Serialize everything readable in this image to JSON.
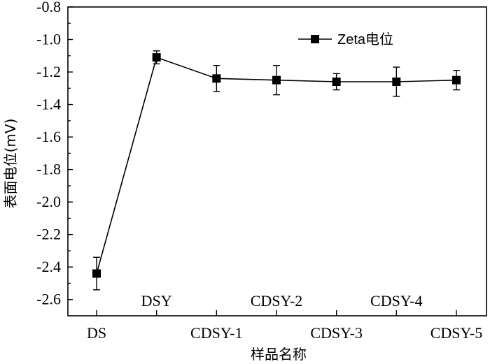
{
  "chart_data": {
    "type": "line",
    "categories": [
      "DS",
      "DSY",
      "CDSY-1",
      "CDSY-2",
      "CDSY-3",
      "CDSY-4",
      "CDSY-5"
    ],
    "series": [
      {
        "name": "Zeta电位",
        "values": [
          -2.44,
          -1.11,
          -1.24,
          -1.25,
          -1.26,
          -1.26,
          -1.25
        ],
        "error": [
          0.1,
          0.04,
          0.08,
          0.09,
          0.05,
          0.09,
          0.06
        ]
      }
    ],
    "xlabel": "样品名称",
    "ylabel": "表面电位(mV)",
    "ylim": [
      -2.7,
      -0.8
    ],
    "yticks": [
      -0.8,
      -1.0,
      -1.2,
      -1.4,
      -1.6,
      -1.8,
      -2.0,
      -2.2,
      -2.4,
      -2.6
    ],
    "ytick_labels": [
      "-0.8",
      "-1.0",
      "-1.2",
      "-1.4",
      "-1.6",
      "-1.8",
      "-2.0",
      "-2.2",
      "-2.4",
      "-2.6"
    ],
    "grid": false,
    "legend_position": "top-right",
    "colors": {
      "line": "#000000",
      "marker": "#000000"
    }
  }
}
